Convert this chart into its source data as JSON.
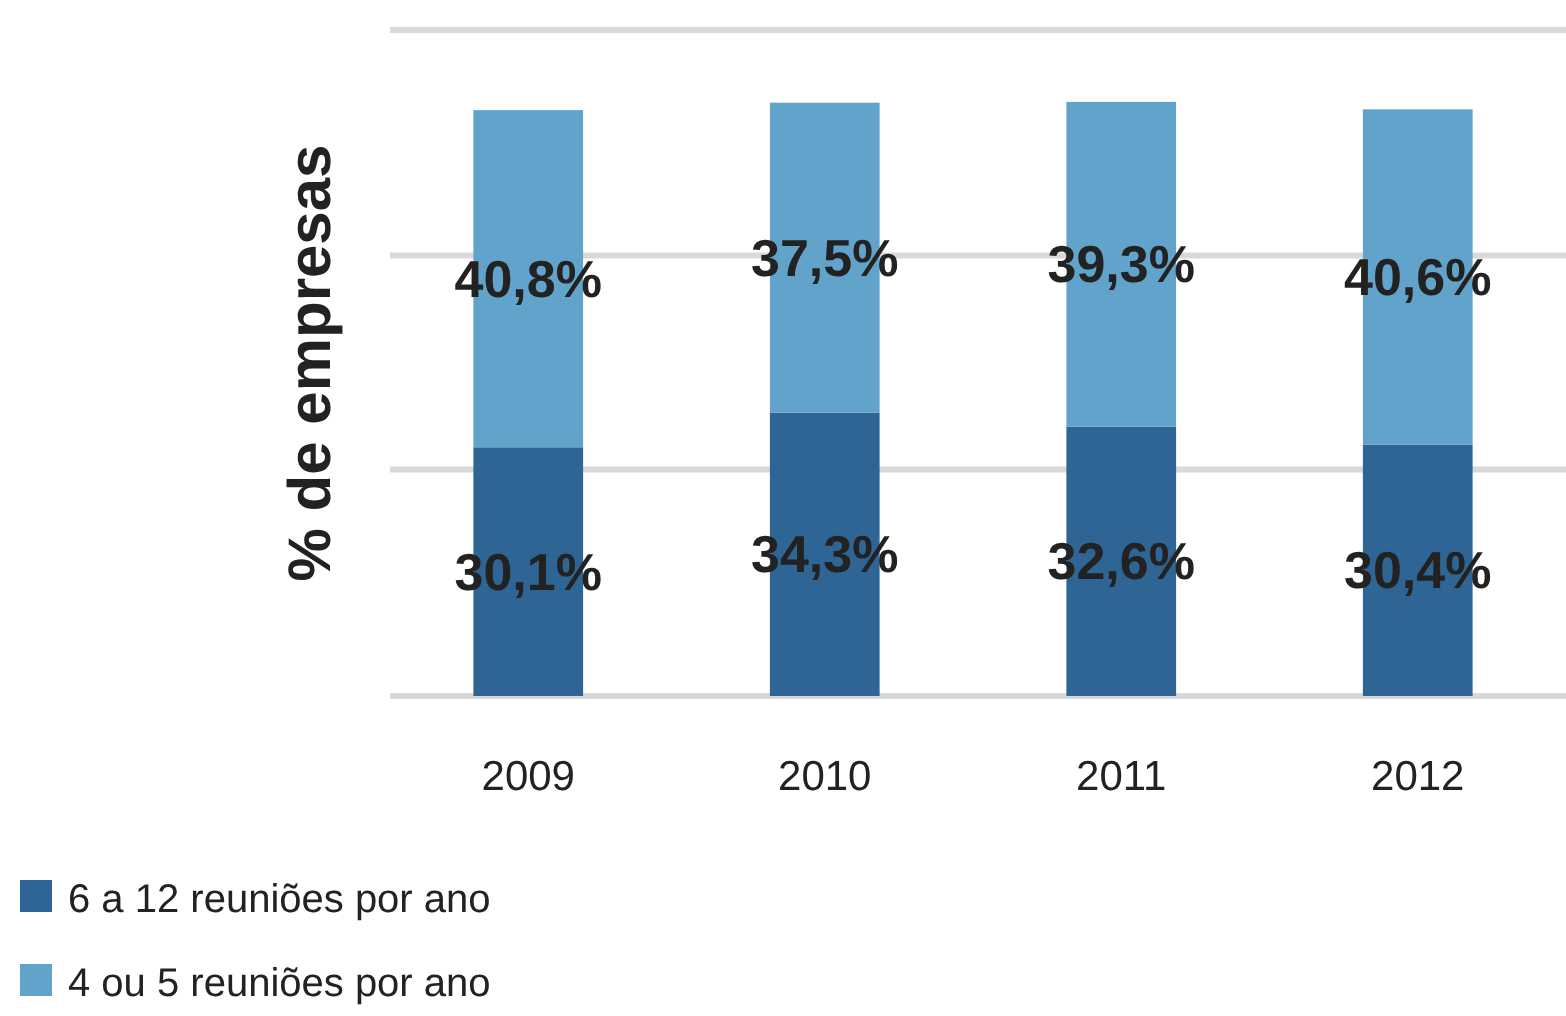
{
  "chart_data": {
    "type": "bar",
    "stacked": true,
    "ylabel": "% de empresas",
    "categories": [
      "2009",
      "2010",
      "2011",
      "2012"
    ],
    "series": [
      {
        "name": "6 a 12 reuniões por ano",
        "color": "#2e6594",
        "values": [
          30.1,
          34.3,
          32.6,
          30.4
        ],
        "value_labels": [
          "30,1%",
          "34,3%",
          "32,6%",
          "30,4%"
        ]
      },
      {
        "name": "4 ou 5 reuniões por ano",
        "color": "#62a3cb",
        "values": [
          40.8,
          37.5,
          39.3,
          40.6
        ],
        "value_labels": [
          "40,8%",
          "37,5%",
          "39,3%",
          "40,6%"
        ]
      }
    ],
    "ylim": [
      0,
      80.6
    ],
    "yticks": [
      {
        "value": 0,
        "label": null
      },
      {
        "value": 27.4,
        "label": null
      },
      {
        "value": 53.3,
        "label": null
      },
      {
        "value": 80.6,
        "label": null
      }
    ],
    "grid": "y",
    "legend": "bottom left",
    "tick_labels": "x"
  }
}
